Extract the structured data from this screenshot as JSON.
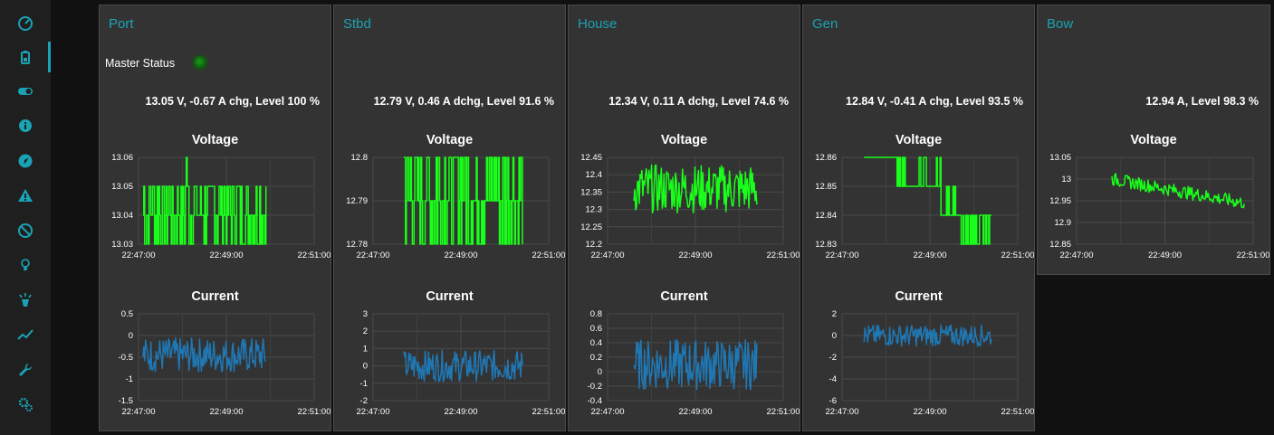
{
  "sidebar": {
    "items": [
      {
        "icon": "dashboard-gauge-icon"
      },
      {
        "icon": "battery-icon",
        "active": true
      },
      {
        "icon": "toggle-icon"
      },
      {
        "icon": "info-icon"
      },
      {
        "icon": "compass-icon"
      },
      {
        "icon": "warning-icon"
      },
      {
        "icon": "ban-icon"
      },
      {
        "icon": "lightbulb-icon"
      },
      {
        "icon": "spotlight-icon"
      },
      {
        "icon": "line-chart-icon"
      },
      {
        "icon": "wrench-icon"
      },
      {
        "icon": "cogs-icon"
      }
    ],
    "accent_color": "#1aa3b5"
  },
  "colors": {
    "voltage_line": "#1aff1a",
    "current_line": "#1f77b4",
    "title": "#1aa3b5"
  },
  "cards": [
    {
      "title": "Port",
      "master_status_label": "Master Status",
      "status": "13.05 V, -0.67 A chg, Level 100 %",
      "voltage_title": "Voltage",
      "current_title": "Current"
    },
    {
      "title": "Stbd",
      "status": "12.79 V, 0.46 A dchg, Level 91.6 %",
      "voltage_title": "Voltage",
      "current_title": "Current"
    },
    {
      "title": "House",
      "status": "12.34 V, 0.11 A dchg, Level 74.6 %",
      "voltage_title": "Voltage",
      "current_title": "Current"
    },
    {
      "title": "Gen",
      "status": "12.84 V, -0.41 A chg, Level 93.5 %",
      "voltage_title": "Voltage",
      "current_title": "Current"
    },
    {
      "title": "Bow",
      "status": "12.94 A, Level 98.3 %",
      "voltage_title": "Voltage"
    }
  ],
  "chart_data": [
    {
      "card": "Port",
      "chart": "Voltage",
      "type": "line",
      "x_ticks": [
        "22:47:00",
        "22:49:00",
        "22:51:00"
      ],
      "y_ticks": [
        "13.06",
        "13.05",
        "13.04",
        "13.03"
      ],
      "ylim": [
        13.03,
        13.06
      ],
      "x_range": [
        0,
        4
      ],
      "data_x_range": [
        0.1,
        2.9
      ],
      "series": [
        {
          "style": "step",
          "noise": "step",
          "levels": [
            13.03,
            13.04,
            13.05
          ],
          "spike": 13.06,
          "mean": 13.045
        }
      ]
    },
    {
      "card": "Port",
      "chart": "Current",
      "type": "line",
      "x_ticks": [
        "22:47:00",
        "22:49:00",
        "22:51:00"
      ],
      "y_ticks": [
        "0.5",
        "0",
        "-0.5",
        "-1",
        "-1.5"
      ],
      "ylim": [
        -1.5,
        0.5
      ],
      "x_range": [
        0,
        4
      ],
      "data_x_range": [
        0.1,
        2.9
      ],
      "series": [
        {
          "style": "noise",
          "mean": -0.45,
          "amp": 0.4
        }
      ]
    },
    {
      "card": "Stbd",
      "chart": "Voltage",
      "type": "line",
      "x_ticks": [
        "22:47:00",
        "22:49:00",
        "22:51:00"
      ],
      "y_ticks": [
        "12.8",
        "12.79",
        "12.78"
      ],
      "ylim": [
        12.78,
        12.8
      ],
      "x_range": [
        0,
        4
      ],
      "data_x_range": [
        0.7,
        3.4
      ],
      "series": [
        {
          "style": "step",
          "levels": [
            12.78,
            12.79,
            12.8
          ],
          "mean": 12.79
        }
      ]
    },
    {
      "card": "Stbd",
      "chart": "Current",
      "type": "line",
      "x_ticks": [
        "22:47:00",
        "22:49:00",
        "22:51:00"
      ],
      "y_ticks": [
        "3",
        "2",
        "1",
        "0",
        "-1",
        "-2"
      ],
      "ylim": [
        -2,
        3
      ],
      "x_range": [
        0,
        4
      ],
      "data_x_range": [
        0.7,
        3.4
      ],
      "series": [
        {
          "style": "noise",
          "mean": 0.0,
          "amp": 0.9
        }
      ]
    },
    {
      "card": "House",
      "chart": "Voltage",
      "type": "line",
      "x_ticks": [
        "22:47:00",
        "22:49:00",
        "22:51:00"
      ],
      "y_ticks": [
        "12.45",
        "12.4",
        "12.35",
        "12.3",
        "12.25",
        "12.2"
      ],
      "ylim": [
        12.2,
        12.45
      ],
      "x_range": [
        0,
        4
      ],
      "data_x_range": [
        0.6,
        3.4
      ],
      "series": [
        {
          "style": "noise",
          "mean": 12.36,
          "amp": 0.07
        }
      ]
    },
    {
      "card": "House",
      "chart": "Current",
      "type": "line",
      "x_ticks": [
        "22:47:00",
        "22:49:00",
        "22:51:00"
      ],
      "y_ticks": [
        "0.8",
        "0.6",
        "0.4",
        "0.2",
        "0",
        "-0.2",
        "-0.4"
      ],
      "ylim": [
        -0.4,
        0.8
      ],
      "x_range": [
        0,
        4
      ],
      "data_x_range": [
        0.6,
        3.4
      ],
      "series": [
        {
          "style": "noise",
          "mean": 0.1,
          "amp": 0.35
        }
      ]
    },
    {
      "card": "Gen",
      "chart": "Voltage",
      "type": "line",
      "x_ticks": [
        "22:47:00",
        "22:49:00",
        "22:51:00"
      ],
      "y_ticks": [
        "12.86",
        "12.85",
        "12.84",
        "12.83"
      ],
      "ylim": [
        12.83,
        12.86
      ],
      "x_range": [
        0,
        4
      ],
      "data_x_range": [
        0.5,
        3.4
      ],
      "series": [
        {
          "style": "descend",
          "levels": [
            12.86,
            12.85,
            12.84,
            12.83
          ]
        }
      ]
    },
    {
      "card": "Gen",
      "chart": "Current",
      "type": "line",
      "x_ticks": [
        "22:47:00",
        "22:49:00",
        "22:51:00"
      ],
      "y_ticks": [
        "2",
        "0",
        "-2",
        "-4",
        "-6"
      ],
      "ylim": [
        -6,
        2
      ],
      "x_range": [
        0,
        4
      ],
      "data_x_range": [
        0.5,
        3.4
      ],
      "series": [
        {
          "style": "noise",
          "mean": 0.0,
          "amp": 1.0
        }
      ]
    },
    {
      "card": "Bow",
      "chart": "Voltage",
      "type": "line",
      "x_ticks": [
        "22:47:00",
        "22:49:00",
        "22:51:00"
      ],
      "y_ticks": [
        "13.05",
        "13",
        "12.95",
        "12.9",
        "12.85"
      ],
      "ylim": [
        12.85,
        13.05
      ],
      "x_range": [
        0,
        4
      ],
      "data_x_range": [
        0.8,
        3.8
      ],
      "series": [
        {
          "style": "trend",
          "start": 13.0,
          "end": 12.945,
          "amp": 0.015
        }
      ]
    }
  ]
}
